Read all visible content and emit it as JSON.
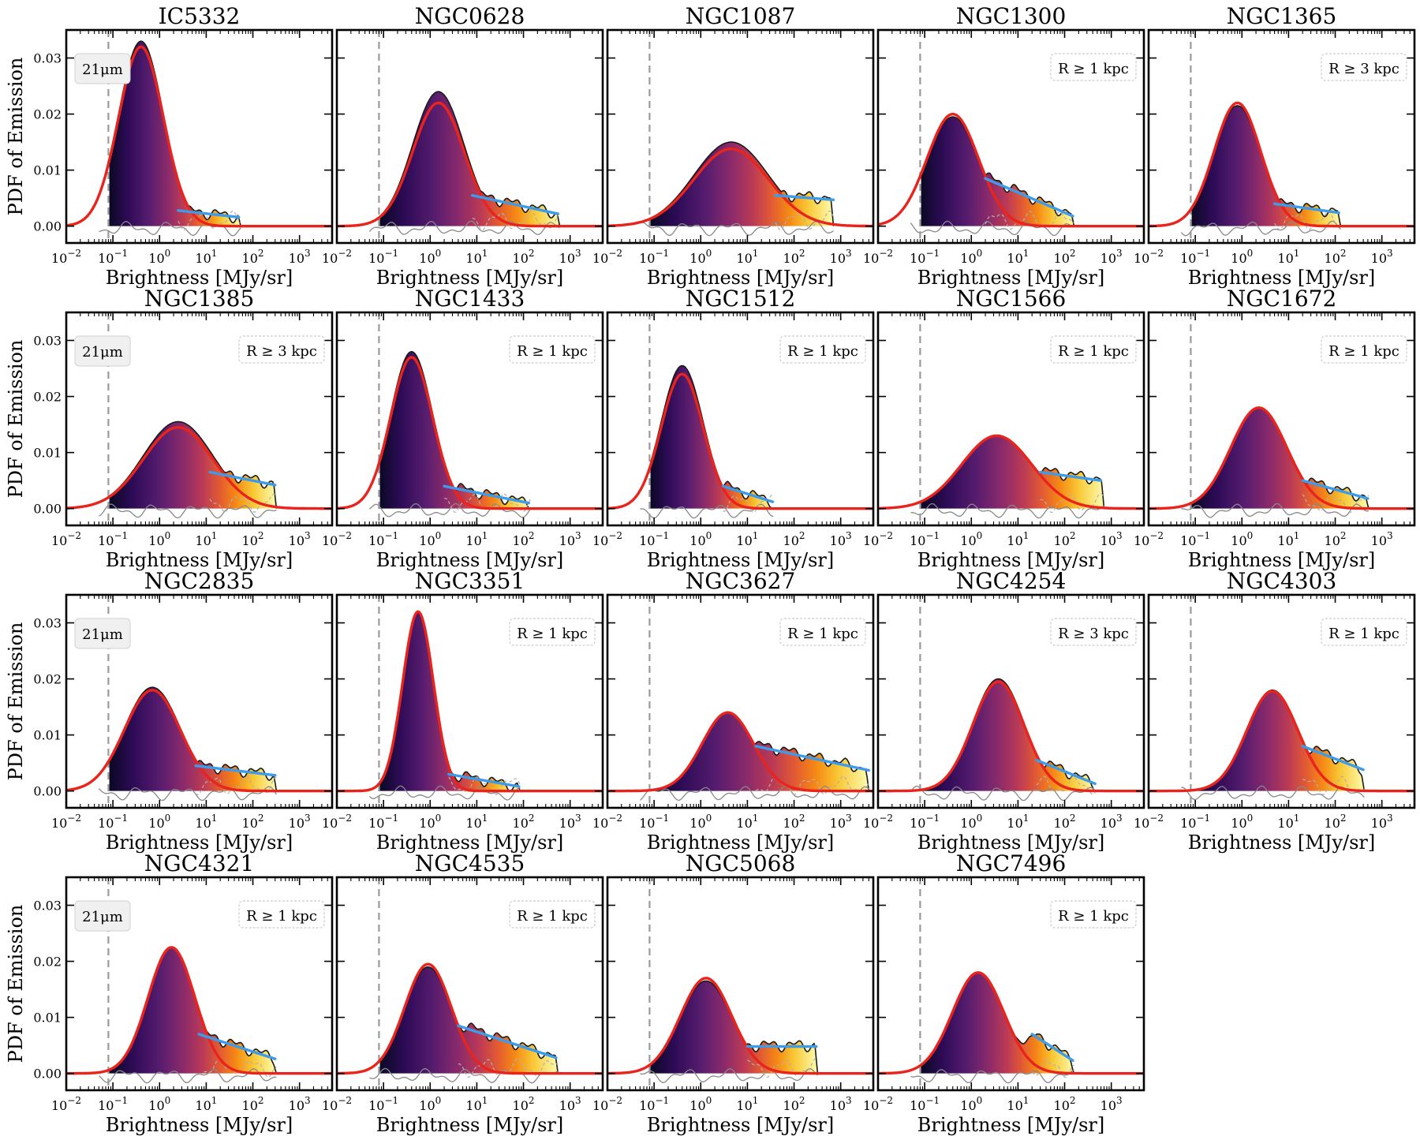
{
  "chart_data": {
    "type": "area",
    "description_axes": "log-scale x, linear y",
    "xlabel": "Brightness [MJy/sr]",
    "ylabel": "PDF of Emission",
    "xlim": [
      0.01,
      5000
    ],
    "ylim": [
      -0.003,
      0.035
    ],
    "xticks": [
      0.01,
      0.1,
      1,
      10,
      100,
      1000
    ],
    "xtick_labels": [
      {
        "base": "10",
        "exp": "−2"
      },
      {
        "base": "10",
        "exp": "−1"
      },
      {
        "base": "10",
        "exp": "0"
      },
      {
        "base": "10",
        "exp": "1"
      },
      {
        "base": "10",
        "exp": "2"
      },
      {
        "base": "10",
        "exp": "3"
      }
    ],
    "yticks": [
      0.0,
      0.01,
      0.02,
      0.03
    ],
    "ytick_labels": [
      "0.00",
      "0.01",
      "0.02",
      "0.03"
    ],
    "threshold_line_x": 0.08,
    "wavelength_label": "21μm",
    "colors": {
      "lognormal_fit": "#e8241c",
      "powerlaw_fit": "#3d9be9",
      "threshold": "#9a9a9a",
      "outline": "#1a1a1a",
      "residual": "#888888"
    },
    "panels": [
      {
        "title": "IC5332",
        "mu": 0.4,
        "sigma": 0.48,
        "amp": 0.032,
        "peak": 0.033,
        "plx": [
          2.5,
          50
        ],
        "ply": [
          0.0028,
          0.0016
        ],
        "xmax": 55,
        "radius": null
      },
      {
        "title": "NGC0628",
        "mu": 1.5,
        "sigma": 0.55,
        "amp": 0.022,
        "peak": 0.024,
        "plx": [
          8,
          550
        ],
        "ply": [
          0.0055,
          0.0022
        ],
        "xmax": 600,
        "radius": null
      },
      {
        "title": "NGC1087",
        "mu": 4.5,
        "sigma": 0.8,
        "amp": 0.0138,
        "peak": 0.015,
        "plx": [
          40,
          700
        ],
        "ply": [
          0.0055,
          0.0047
        ],
        "xmax": 700,
        "radius": null
      },
      {
        "title": "NGC1300",
        "mu": 0.4,
        "sigma": 0.55,
        "amp": 0.02,
        "peak": 0.0195,
        "plx": [
          2,
          150
        ],
        "ply": [
          0.0085,
          0.0018
        ],
        "xmax": 160,
        "radius": "R ≥ 1 kpc"
      },
      {
        "title": "NGC1365",
        "mu": 0.8,
        "sigma": 0.5,
        "amp": 0.022,
        "peak": 0.0215,
        "plx": [
          5,
          120
        ],
        "ply": [
          0.004,
          0.0024
        ],
        "xmax": 130,
        "radius": "R ≥ 3 kpc"
      },
      {
        "title": "NGC1385",
        "mu": 2.5,
        "sigma": 0.75,
        "amp": 0.0145,
        "peak": 0.0155,
        "plx": [
          12,
          300
        ],
        "ply": [
          0.0065,
          0.0042
        ],
        "xmax": 320,
        "radius": "R ≥ 3 kpc"
      },
      {
        "title": "NGC1433",
        "mu": 0.4,
        "sigma": 0.45,
        "amp": 0.027,
        "peak": 0.028,
        "plx": [
          2,
          130
        ],
        "ply": [
          0.004,
          0.001
        ],
        "xmax": 140,
        "radius": "R ≥ 1 kpc"
      },
      {
        "title": "NGC1512",
        "mu": 0.4,
        "sigma": 0.45,
        "amp": 0.024,
        "peak": 0.0255,
        "plx": [
          3,
          35
        ],
        "ply": [
          0.004,
          0.0012
        ],
        "xmax": 36,
        "radius": "R ≥ 1 kpc"
      },
      {
        "title": "NGC1566",
        "mu": 3.5,
        "sigma": 0.75,
        "amp": 0.013,
        "peak": 0.013,
        "plx": [
          30,
          600
        ],
        "ply": [
          0.0065,
          0.005
        ],
        "xmax": 700,
        "radius": "R ≥ 1 kpc"
      },
      {
        "title": "NGC1672",
        "mu": 2.3,
        "sigma": 0.6,
        "amp": 0.018,
        "peak": 0.018,
        "plx": [
          20,
          500
        ],
        "ply": [
          0.005,
          0.0018
        ],
        "xmax": 520,
        "radius": "R ≥ 1 kpc"
      },
      {
        "title": "NGC2835",
        "mu": 0.7,
        "sigma": 0.6,
        "amp": 0.018,
        "peak": 0.0185,
        "plx": [
          6,
          300
        ],
        "ply": [
          0.0045,
          0.0028
        ],
        "xmax": 320,
        "radius": null
      },
      {
        "title": "NGC3351",
        "mu": 0.55,
        "sigma": 0.33,
        "amp": 0.032,
        "peak": 0.032,
        "plx": [
          2.5,
          80
        ],
        "ply": [
          0.003,
          0.0008
        ],
        "xmax": 85,
        "radius": "R ≥ 1 kpc"
      },
      {
        "title": "NGC3627",
        "mu": 3.8,
        "sigma": 0.55,
        "amp": 0.014,
        "peak": 0.014,
        "plx": [
          15,
          4000
        ],
        "ply": [
          0.008,
          0.0037
        ],
        "xmax": 4000,
        "radius": "R ≥ 1 kpc"
      },
      {
        "title": "NGC4254",
        "mu": 3.8,
        "sigma": 0.55,
        "amp": 0.0195,
        "peak": 0.02,
        "plx": [
          25,
          450
        ],
        "ply": [
          0.0055,
          0.0013
        ],
        "xmax": 460,
        "radius": "R ≥ 3 kpc"
      },
      {
        "title": "NGC4303",
        "mu": 4.5,
        "sigma": 0.55,
        "amp": 0.0178,
        "peak": 0.018,
        "plx": [
          20,
          400
        ],
        "ply": [
          0.008,
          0.0038
        ],
        "xmax": 420,
        "radius": "R ≥ 1 kpc"
      },
      {
        "title": "NGC4321",
        "mu": 1.8,
        "sigma": 0.5,
        "amp": 0.0225,
        "peak": 0.0225,
        "plx": [
          7,
          300
        ],
        "ply": [
          0.007,
          0.0026
        ],
        "xmax": 320,
        "radius": "R ≥ 1 kpc"
      },
      {
        "title": "NGC4535",
        "mu": 0.9,
        "sigma": 0.5,
        "amp": 0.0195,
        "peak": 0.019,
        "plx": [
          4,
          500
        ],
        "ply": [
          0.0085,
          0.0028
        ],
        "xmax": 550,
        "radius": "R ≥ 1 kpc"
      },
      {
        "title": "NGC5068",
        "mu": 1.3,
        "sigma": 0.55,
        "amp": 0.017,
        "peak": 0.0165,
        "plx": [
          10,
          300
        ],
        "ply": [
          0.0048,
          0.0048
        ],
        "xmax": 320,
        "radius": null
      },
      {
        "title": "NGC7496",
        "mu": 1.4,
        "sigma": 0.55,
        "amp": 0.018,
        "peak": 0.018,
        "plx": [
          20,
          150
        ],
        "ply": [
          0.007,
          0.0023
        ],
        "xmax": 160,
        "radius": "R ≥ 1 kpc"
      }
    ],
    "wavelength_badge_panels": [
      "IC5332",
      "NGC1385",
      "NGC2835",
      "NGC4321"
    ]
  }
}
